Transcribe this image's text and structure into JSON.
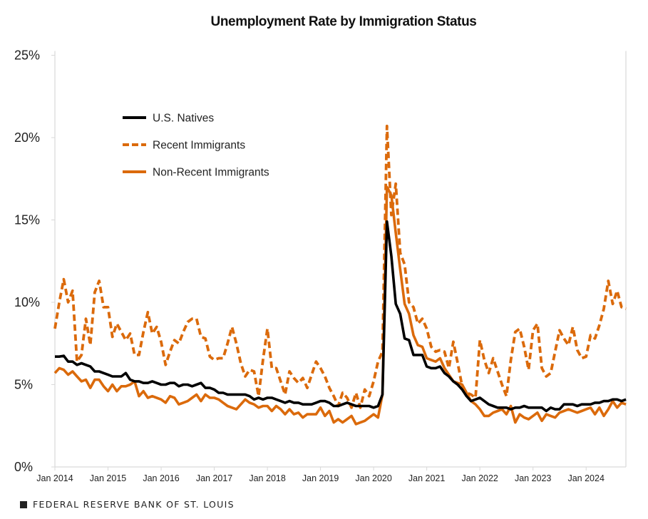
{
  "chart_data": {
    "type": "line",
    "title": "Unemployment Rate by Immigration Status",
    "xlabel": "",
    "ylabel": "",
    "ylim": [
      0,
      25
    ],
    "y_ticks": [
      "0%",
      "5%",
      "10%",
      "15%",
      "20%",
      "25%"
    ],
    "y_tick_values": [
      0,
      5,
      10,
      15,
      20,
      25
    ],
    "x_ticks": [
      "Jan 2014",
      "Jan 2015",
      "Jan 2016",
      "Jan 2017",
      "Jan 2018",
      "Jan 2019",
      "Jan 2020",
      "Jan 2021",
      "Jan 2022",
      "Jan 2023",
      "Jan 2024"
    ],
    "xlim": [
      "2014-01",
      "2024-10"
    ],
    "grid": false,
    "legend_position": "upper-left",
    "x": [
      "2014-01",
      "2014-02",
      "2014-03",
      "2014-04",
      "2014-05",
      "2014-06",
      "2014-07",
      "2014-08",
      "2014-09",
      "2014-10",
      "2014-11",
      "2014-12",
      "2015-01",
      "2015-02",
      "2015-03",
      "2015-04",
      "2015-05",
      "2015-06",
      "2015-07",
      "2015-08",
      "2015-09",
      "2015-10",
      "2015-11",
      "2015-12",
      "2016-01",
      "2016-02",
      "2016-03",
      "2016-04",
      "2016-05",
      "2016-06",
      "2016-07",
      "2016-08",
      "2016-09",
      "2016-10",
      "2016-11",
      "2016-12",
      "2017-01",
      "2017-02",
      "2017-03",
      "2017-04",
      "2017-05",
      "2017-06",
      "2017-07",
      "2017-08",
      "2017-09",
      "2017-10",
      "2017-11",
      "2017-12",
      "2018-01",
      "2018-02",
      "2018-03",
      "2018-04",
      "2018-05",
      "2018-06",
      "2018-07",
      "2018-08",
      "2018-09",
      "2018-10",
      "2018-11",
      "2018-12",
      "2019-01",
      "2019-02",
      "2019-03",
      "2019-04",
      "2019-05",
      "2019-06",
      "2019-07",
      "2019-08",
      "2019-09",
      "2019-10",
      "2019-11",
      "2019-12",
      "2020-01",
      "2020-02",
      "2020-03",
      "2020-04",
      "2020-05",
      "2020-06",
      "2020-07",
      "2020-08",
      "2020-09",
      "2020-10",
      "2020-11",
      "2020-12",
      "2021-01",
      "2021-02",
      "2021-03",
      "2021-04",
      "2021-05",
      "2021-06",
      "2021-07",
      "2021-08",
      "2021-09",
      "2021-10",
      "2021-11",
      "2021-12",
      "2022-01",
      "2022-02",
      "2022-03",
      "2022-04",
      "2022-05",
      "2022-06",
      "2022-07",
      "2022-08",
      "2022-09",
      "2022-10",
      "2022-11",
      "2022-12",
      "2023-01",
      "2023-02",
      "2023-03",
      "2023-04",
      "2023-05",
      "2023-06",
      "2023-07",
      "2023-08",
      "2023-09",
      "2023-10",
      "2023-11",
      "2023-12",
      "2024-01",
      "2024-02",
      "2024-03",
      "2024-04",
      "2024-05",
      "2024-06",
      "2024-07",
      "2024-08",
      "2024-09",
      "2024-10"
    ],
    "series": [
      {
        "name": "U.S. Natives",
        "color": "#000000",
        "style": "solid",
        "values": [
          6.7,
          6.7,
          6.75,
          6.4,
          6.4,
          6.2,
          6.3,
          6.2,
          6.1,
          5.8,
          5.8,
          5.7,
          5.6,
          5.5,
          5.5,
          5.5,
          5.7,
          5.3,
          5.2,
          5.2,
          5.1,
          5.1,
          5.2,
          5.1,
          5.0,
          5.0,
          5.1,
          5.1,
          4.9,
          5.0,
          5.0,
          4.9,
          5.0,
          5.1,
          4.8,
          4.8,
          4.7,
          4.5,
          4.5,
          4.4,
          4.4,
          4.4,
          4.4,
          4.4,
          4.3,
          4.1,
          4.2,
          4.1,
          4.2,
          4.2,
          4.1,
          4.0,
          3.9,
          4.0,
          3.9,
          3.9,
          3.8,
          3.8,
          3.8,
          3.9,
          4.0,
          4.0,
          3.9,
          3.7,
          3.7,
          3.8,
          3.9,
          3.8,
          3.7,
          3.7,
          3.7,
          3.7,
          3.6,
          3.7,
          4.4,
          14.9,
          12.8,
          9.9,
          9.3,
          7.8,
          7.7,
          6.8,
          6.8,
          6.8,
          6.1,
          6.0,
          6.0,
          6.1,
          5.7,
          5.5,
          5.2,
          5.0,
          4.7,
          4.3,
          4.0,
          4.1,
          4.2,
          4.0,
          3.8,
          3.7,
          3.6,
          3.6,
          3.6,
          3.5,
          3.6,
          3.6,
          3.7,
          3.6,
          3.6,
          3.6,
          3.6,
          3.4,
          3.6,
          3.5,
          3.5,
          3.8,
          3.8,
          3.8,
          3.7,
          3.8,
          3.8,
          3.8,
          3.9,
          3.9,
          4.0,
          4.0,
          4.1,
          4.1,
          4.0,
          4.1
        ]
      },
      {
        "name": "Recent Immigrants",
        "color": "#DB6A0B",
        "style": "dashed",
        "values": [
          8.4,
          10.0,
          11.4,
          10.0,
          10.7,
          6.4,
          6.8,
          9.0,
          7.4,
          10.6,
          11.3,
          9.7,
          9.7,
          7.9,
          8.7,
          8.2,
          7.7,
          8.1,
          6.8,
          6.8,
          8.2,
          9.4,
          8.1,
          8.5,
          7.6,
          6.2,
          7.0,
          7.7,
          7.5,
          8.2,
          8.8,
          9.0,
          9.0,
          7.9,
          7.8,
          6.7,
          6.5,
          6.6,
          6.6,
          7.5,
          8.5,
          7.5,
          6.3,
          5.5,
          5.9,
          5.8,
          4.3,
          6.5,
          8.4,
          6.0,
          6.0,
          5.2,
          4.4,
          5.8,
          5.4,
          5.1,
          5.4,
          4.8,
          5.6,
          6.4,
          6.0,
          5.5,
          4.8,
          4.3,
          3.7,
          4.5,
          4.2,
          3.6,
          4.5,
          3.6,
          4.7,
          4.3,
          5.2,
          6.4,
          7.0,
          20.7,
          15.3,
          17.2,
          13.0,
          12.3,
          10.0,
          9.7,
          8.7,
          9.0,
          8.4,
          7.3,
          7.0,
          7.1,
          7.0,
          6.0,
          7.6,
          6.3,
          4.9,
          4.5,
          4.4,
          4.2,
          7.7,
          6.5,
          5.7,
          6.6,
          5.8,
          5.0,
          4.3,
          6.5,
          8.2,
          8.4,
          7.3,
          5.9,
          8.3,
          8.7,
          6.0,
          5.5,
          5.7,
          7.0,
          8.3,
          7.8,
          7.4,
          8.5,
          7.1,
          6.6,
          6.7,
          8.0,
          7.8,
          8.6,
          9.6,
          11.3,
          9.9,
          10.7,
          9.7,
          9.6
        ]
      },
      {
        "name": "Non-Recent Immigrants",
        "color": "#DB6A0B",
        "style": "solid",
        "values": [
          5.7,
          6.0,
          5.9,
          5.6,
          5.8,
          5.5,
          5.2,
          5.3,
          4.8,
          5.3,
          5.3,
          4.9,
          4.6,
          5.0,
          4.6,
          4.9,
          4.9,
          5.0,
          5.2,
          4.3,
          4.6,
          4.2,
          4.3,
          4.2,
          4.1,
          3.9,
          4.3,
          4.2,
          3.8,
          3.9,
          4.0,
          4.2,
          4.4,
          4.0,
          4.4,
          4.2,
          4.2,
          4.1,
          3.9,
          3.7,
          3.6,
          3.5,
          3.8,
          4.1,
          3.9,
          3.8,
          3.6,
          3.7,
          3.7,
          3.4,
          3.7,
          3.5,
          3.2,
          3.5,
          3.2,
          3.3,
          3.0,
          3.2,
          3.2,
          3.2,
          3.6,
          3.1,
          3.4,
          2.7,
          2.9,
          2.7,
          2.9,
          3.1,
          2.6,
          2.7,
          2.8,
          3.0,
          3.2,
          3.0,
          4.4,
          17.0,
          16.5,
          14.2,
          12.0,
          9.9,
          9.3,
          8.0,
          7.4,
          7.3,
          6.6,
          6.5,
          6.4,
          6.6,
          6.0,
          5.6,
          5.2,
          5.1,
          5.0,
          4.5,
          4.0,
          3.8,
          3.5,
          3.1,
          3.1,
          3.3,
          3.4,
          3.5,
          3.2,
          3.7,
          2.7,
          3.2,
          3.0,
          2.9,
          3.1,
          3.3,
          2.8,
          3.2,
          3.1,
          3.0,
          3.3,
          3.4,
          3.5,
          3.4,
          3.3,
          3.4,
          3.5,
          3.6,
          3.2,
          3.6,
          3.1,
          3.5,
          4.0,
          3.6,
          3.9,
          3.8
        ]
      }
    ]
  },
  "footer": {
    "text": "FEDERAL RESERVE BANK OF ST. LOUIS",
    "icon": "square-icon"
  }
}
